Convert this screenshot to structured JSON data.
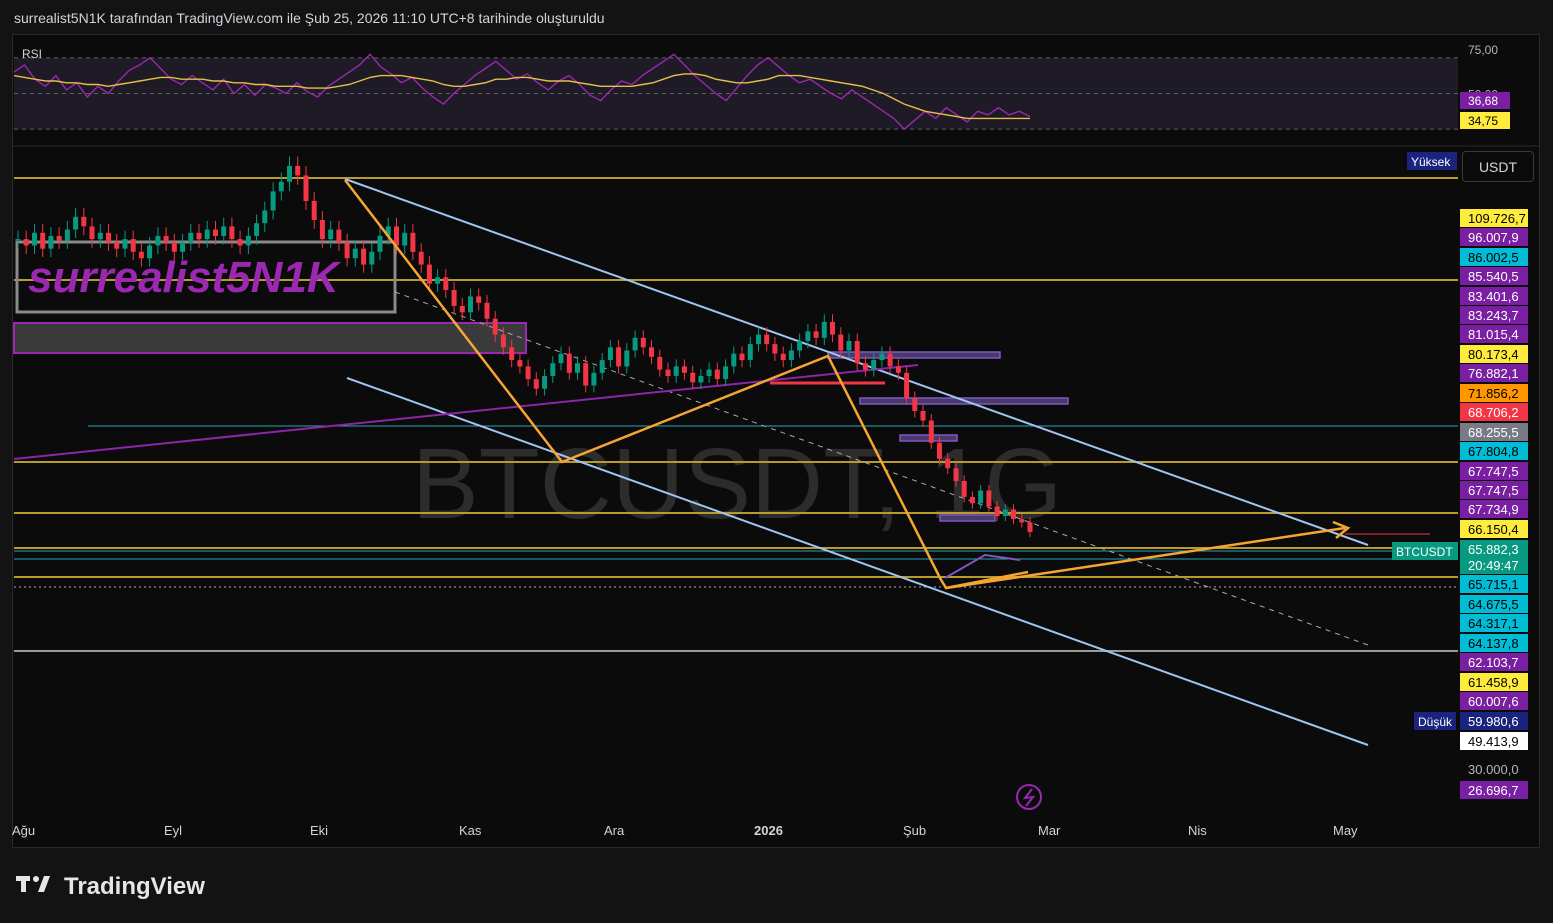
{
  "header": {
    "title": "surrealist5N1K tarafından TradingView.com ile Şub 25, 2026 11:10 UTC+8 tarihinde oluşturuldu"
  },
  "footer": {
    "brand": "TradingView"
  },
  "toolbar": {
    "currency": "USDT"
  },
  "icons": {
    "lightning": "lightning-icon",
    "logo": "tradingview-logo-icon"
  },
  "chart_data": [
    {
      "type": "line",
      "title": "RSI",
      "ylim": [
        25,
        80
      ],
      "ticks": [
        {
          "value": 75,
          "label": "75,00"
        },
        {
          "value": 50,
          "label": "50,00"
        }
      ],
      "levels": [
        70,
        50,
        30
      ],
      "badges": [
        {
          "value": 36.68,
          "label": "36,68",
          "color": "#7b1fa2"
        },
        {
          "value": 34.75,
          "label": "34,75",
          "color": "#ffeb3b"
        }
      ],
      "series": [
        {
          "color": "#9c27b0",
          "values": [
            62,
            66,
            58,
            54,
            60,
            52,
            56,
            48,
            54,
            50,
            57,
            63,
            66,
            70,
            64,
            58,
            55,
            60,
            56,
            52,
            58,
            50,
            55,
            49,
            55,
            53,
            50,
            56,
            51,
            48,
            54,
            58,
            62,
            66,
            72,
            65,
            61,
            56,
            59,
            53,
            48,
            44,
            50,
            55,
            60,
            64,
            68,
            63,
            58,
            61,
            56,
            52,
            57,
            60,
            55,
            49,
            46,
            52,
            57,
            55,
            60,
            64,
            68,
            72,
            66,
            60,
            55,
            50,
            46,
            53,
            60,
            66,
            70,
            65,
            60,
            56,
            58,
            54,
            50,
            47,
            52,
            48,
            44,
            40,
            36,
            30,
            35,
            40,
            36,
            42,
            38,
            34,
            40,
            38,
            42,
            38,
            40,
            37
          ]
        },
        {
          "color": "#e6c04a",
          "values": [
            60,
            59,
            58,
            57,
            57,
            56,
            56,
            55,
            55,
            54,
            55,
            56,
            57,
            58,
            59,
            59,
            58,
            58,
            58,
            57,
            57,
            56,
            56,
            55,
            55,
            54,
            54,
            54,
            53,
            53,
            53,
            54,
            55,
            57,
            59,
            60,
            60,
            60,
            59,
            58,
            57,
            55,
            54,
            54,
            55,
            56,
            58,
            58,
            59,
            59,
            58,
            57,
            57,
            57,
            56,
            55,
            54,
            54,
            54,
            54,
            55,
            56,
            58,
            60,
            61,
            61,
            60,
            58,
            57,
            56,
            56,
            57,
            58,
            60,
            60,
            60,
            59,
            58,
            57,
            56,
            55,
            54,
            52,
            50,
            47,
            44,
            42,
            40,
            39,
            38,
            37,
            36,
            36,
            36,
            36,
            36,
            36,
            36
          ]
        }
      ]
    },
    {
      "type": "line",
      "title": "BTCUSDT, 1G",
      "symbol": "BTCUSDT",
      "watermark": "BTCUSDT, 1G",
      "signature": "surrealist5N1K",
      "ylim": [
        22000,
        126000
      ],
      "xlabels": [
        "Ağu",
        "Eyl",
        "Eki",
        "Kas",
        "Ara",
        "2026",
        "Şub",
        "Mar",
        "Nis",
        "May"
      ],
      "price_labels": [
        {
          "label": "109.726,7",
          "bg": "#ffeb3b",
          "fg": "#000000"
        },
        {
          "label": "96.007,9",
          "bg": "#7b1fa2",
          "fg": "#ffffff"
        },
        {
          "label": "86.002,5",
          "bg": "#00bcd4",
          "fg": "#000000"
        },
        {
          "label": "85.540,5",
          "bg": "#7b1fa2",
          "fg": "#ffffff"
        },
        {
          "label": "83.401,6",
          "bg": "#7b1fa2",
          "fg": "#ffffff"
        },
        {
          "label": "83.243,7",
          "bg": "#7b1fa2",
          "fg": "#ffffff"
        },
        {
          "label": "81.015,4",
          "bg": "#7b1fa2",
          "fg": "#ffffff"
        },
        {
          "label": "80.173,4",
          "bg": "#ffeb3b",
          "fg": "#000000"
        },
        {
          "label": "76.882,1",
          "bg": "#7b1fa2",
          "fg": "#ffffff"
        },
        {
          "label": "71.856,2",
          "bg": "#ff9800",
          "fg": "#000000"
        },
        {
          "label": "68.706,2",
          "bg": "#f23645",
          "fg": "#ffffff"
        },
        {
          "label": "68.255,5",
          "bg": "#787b86",
          "fg": "#ffffff"
        },
        {
          "label": "67.804,8",
          "bg": "#00bcd4",
          "fg": "#000000"
        },
        {
          "label": "67.747,5",
          "bg": "#7b1fa2",
          "fg": "#ffffff"
        },
        {
          "label": "67.747,5",
          "bg": "#7b1fa2",
          "fg": "#ffffff"
        },
        {
          "label": "67.734,9",
          "bg": "#7b1fa2",
          "fg": "#ffffff"
        },
        {
          "label": "66.150,4",
          "bg": "#ffeb3b",
          "fg": "#000000"
        },
        {
          "label": "65.882,3",
          "bg": "#089981",
          "fg": "#ffffff"
        },
        {
          "label": "20:49:47",
          "bg": "#089981",
          "fg": "#ffffff"
        },
        {
          "label": "65.715,1",
          "bg": "#00bcd4",
          "fg": "#000000"
        },
        {
          "label": "64.675,5",
          "bg": "#00bcd4",
          "fg": "#000000"
        },
        {
          "label": "64.317,1",
          "bg": "#00bcd4",
          "fg": "#000000"
        },
        {
          "label": "64.137,8",
          "bg": "#00bcd4",
          "fg": "#000000"
        },
        {
          "label": "62.103,7",
          "bg": "#7b1fa2",
          "fg": "#ffffff"
        },
        {
          "label": "61.458,9",
          "bg": "#ffeb3b",
          "fg": "#000000"
        },
        {
          "label": "60.007,6",
          "bg": "#7b1fa2",
          "fg": "#ffffff"
        },
        {
          "label": "59.980,6",
          "bg": "#1a237e",
          "fg": "#ffffff"
        },
        {
          "label": "49.413,9",
          "bg": "#ffffff",
          "fg": "#000000"
        },
        {
          "label": "30.000,0",
          "bg": "none",
          "fg": "#b2b5be"
        },
        {
          "label": "26.696,7",
          "bg": "#7b1fa2",
          "fg": "#ffffff"
        }
      ],
      "side_tags": [
        {
          "label": "Yüksek",
          "anchor": "109.726,7"
        },
        {
          "label": "Düşük",
          "anchor": "59.980,6"
        },
        {
          "label": "BTCUSDT",
          "anchor": "65.882,3"
        }
      ],
      "last_price": 65882.3,
      "candle_close": [
        112000,
        111000,
        113000,
        110500,
        112500,
        111800,
        113500,
        115500,
        114000,
        112000,
        113000,
        111500,
        110500,
        112000,
        110000,
        109000,
        111000,
        112500,
        111500,
        110000,
        111500,
        113000,
        112000,
        113500,
        112500,
        114000,
        112000,
        111000,
        112500,
        114500,
        116500,
        119500,
        121000,
        123500,
        122000,
        118000,
        115000,
        112000,
        113500,
        111500,
        109000,
        110500,
        108000,
        110000,
        112500,
        114000,
        111000,
        113000,
        110000,
        108000,
        105000,
        106000,
        104000,
        101500,
        100500,
        103000,
        102000,
        99500,
        97000,
        95000,
        93000,
        92000,
        90000,
        88500,
        90500,
        92500,
        94000,
        91000,
        92500,
        89000,
        91000,
        93000,
        95000,
        92000,
        94500,
        96500,
        95000,
        93500,
        91500,
        90500,
        92000,
        91000,
        89500,
        90500,
        91500,
        90000,
        92000,
        94000,
        93000,
        95500,
        97000,
        95500,
        94000,
        93000,
        94500,
        96000,
        97500,
        96500,
        99000,
        97000,
        94500,
        96000,
        92500,
        91500,
        93000,
        94000,
        92000,
        91000,
        87000,
        85000,
        83500,
        80000,
        77500,
        76000,
        74000,
        71500,
        70500,
        72500,
        70000,
        68500,
        69500,
        68000,
        67500,
        66000
      ]
    }
  ]
}
